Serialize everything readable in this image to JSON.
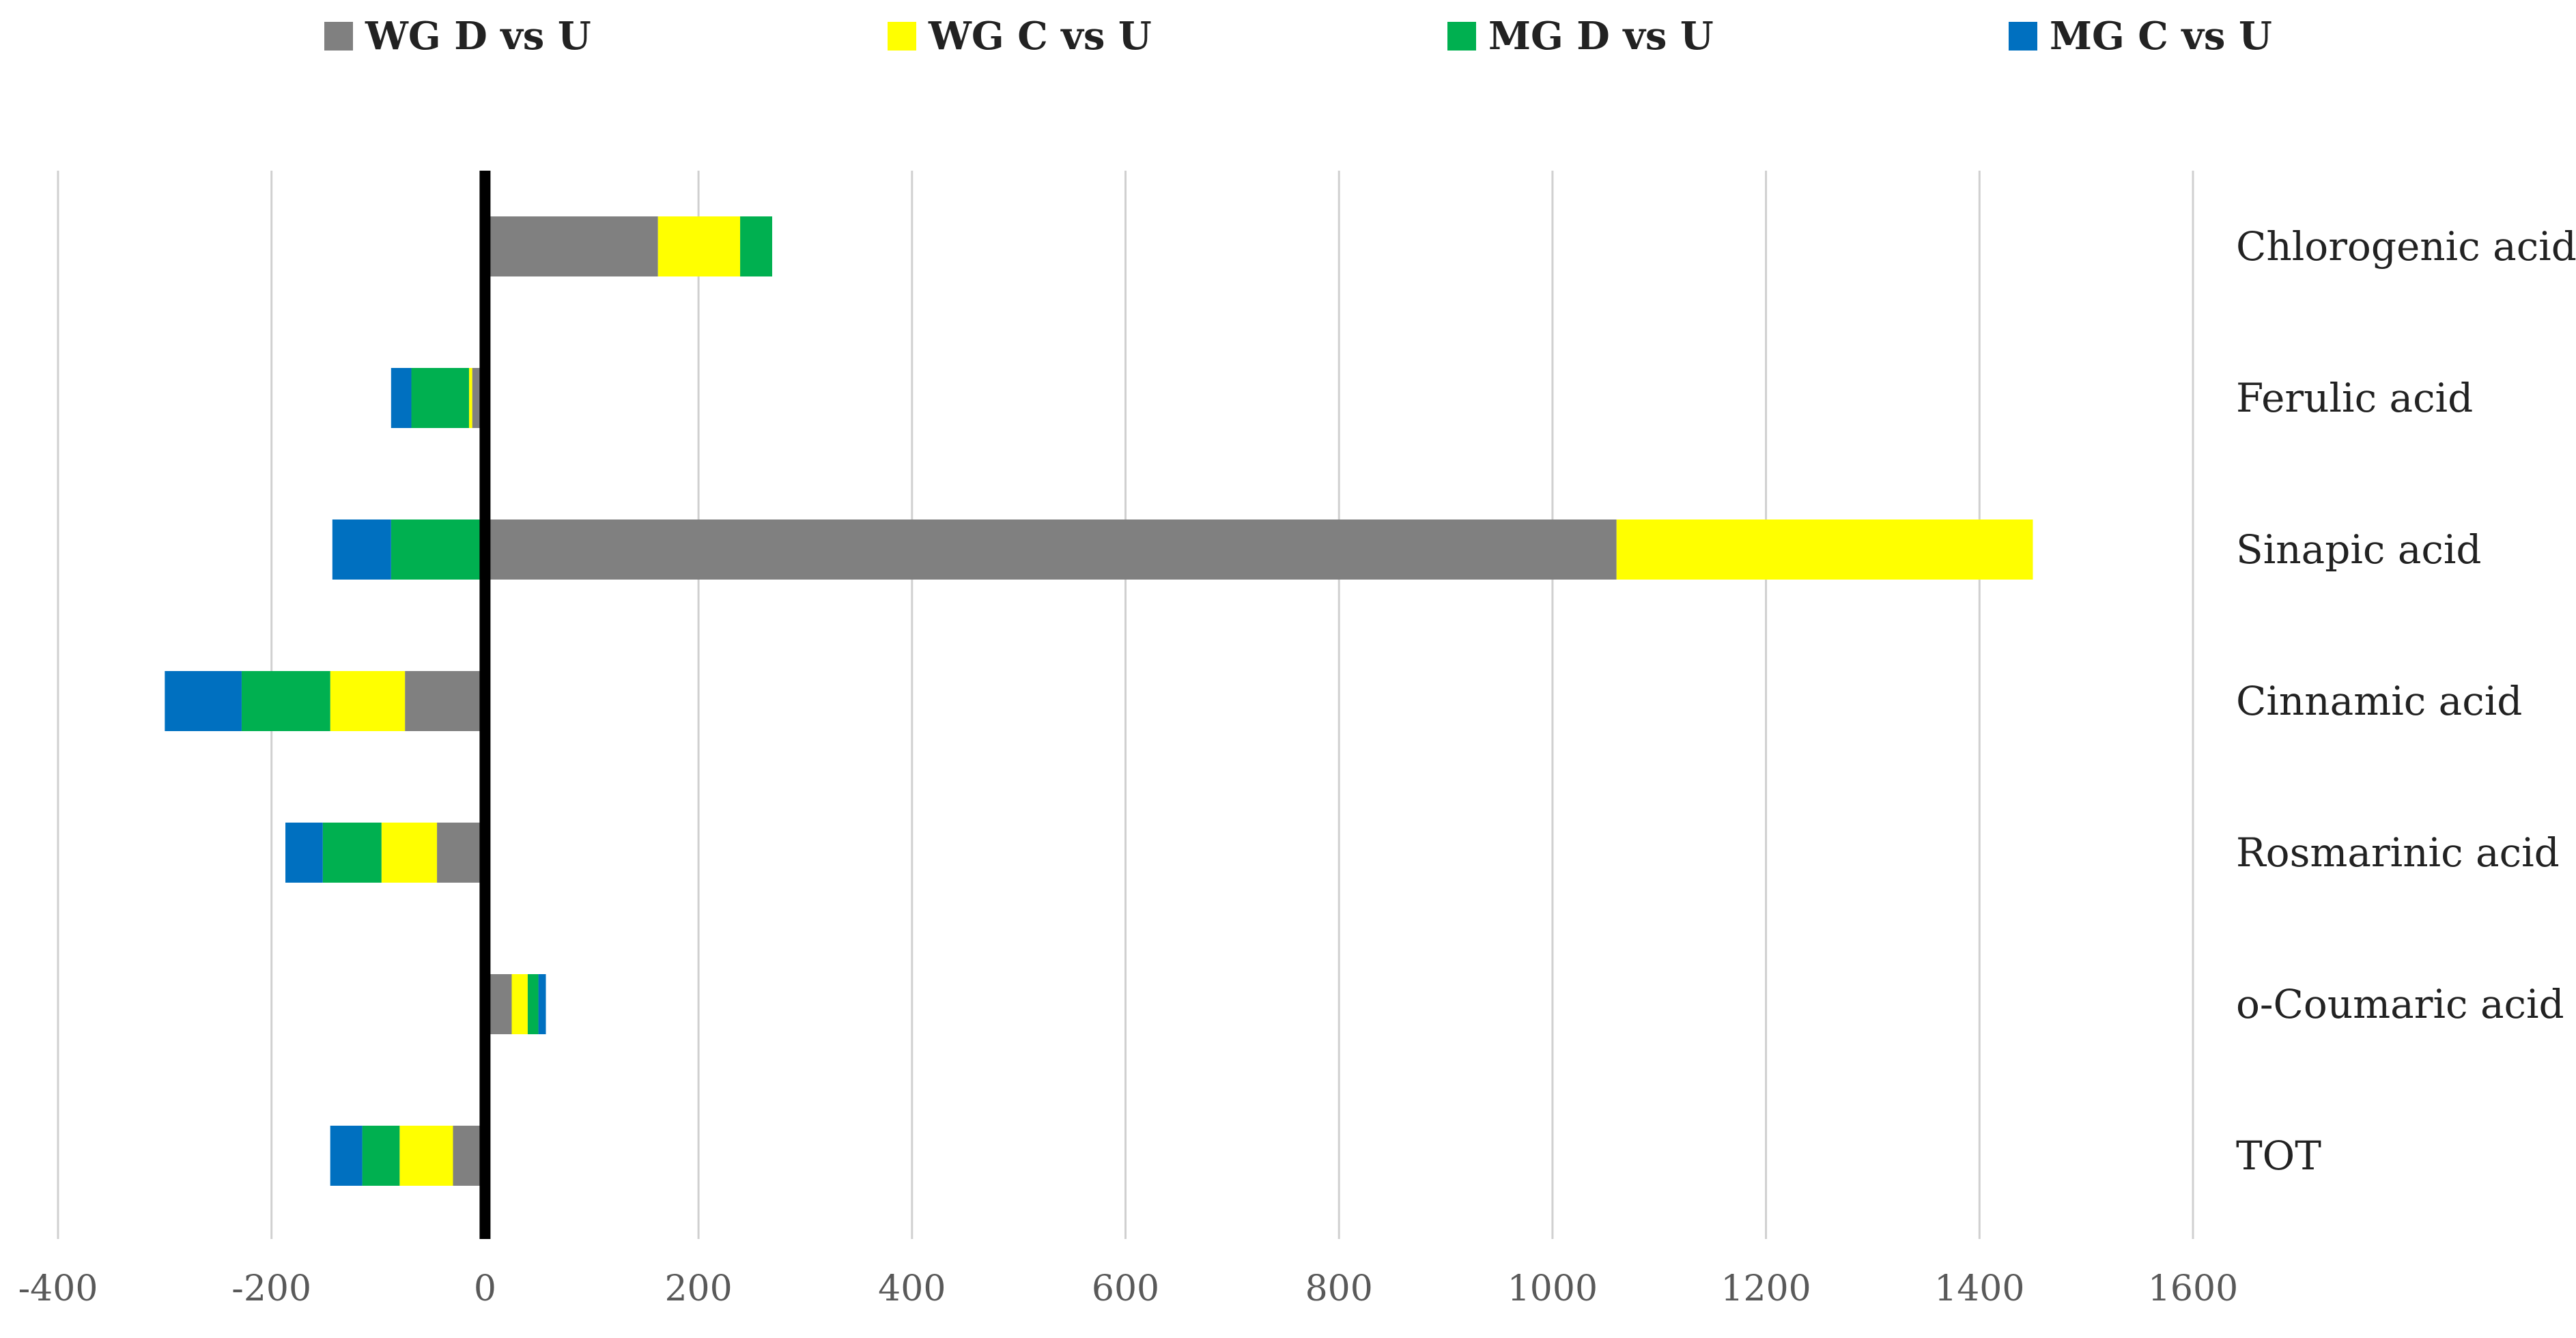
{
  "chart_data": {
    "type": "bar",
    "orientation": "horizontal",
    "stacked": true,
    "categories": [
      "Chlorogenic acid",
      "Ferulic acid",
      "Sinapic acid",
      "Cinnamic acid",
      "Rosmarinic acid",
      "o-Coumaric acid",
      "TOT"
    ],
    "series": [
      {
        "name": "WG D vs U",
        "color": "#808080",
        "values": [
          162,
          -12,
          1060,
          -75,
          -45,
          25,
          -30
        ]
      },
      {
        "name": "WG C vs U",
        "color": "#FFFF00",
        "values": [
          77,
          -3,
          390,
          -70,
          -52,
          15,
          -50
        ]
      },
      {
        "name": "MG D vs U",
        "color": "#00B050",
        "values": [
          30,
          -54,
          -88,
          -83,
          -55,
          10,
          -35
        ]
      },
      {
        "name": "MG C vs U",
        "color": "#0070C0",
        "values": [
          0,
          -19,
          -55,
          -72,
          -35,
          7,
          -30
        ]
      }
    ],
    "xlim": [
      -400,
      1600
    ],
    "x_ticks": [
      "-400",
      "-200",
      "0",
      "200",
      "400",
      "600",
      "800",
      "1000",
      "1200",
      "1400",
      "1600"
    ],
    "grid": true,
    "legend_position": "top"
  }
}
